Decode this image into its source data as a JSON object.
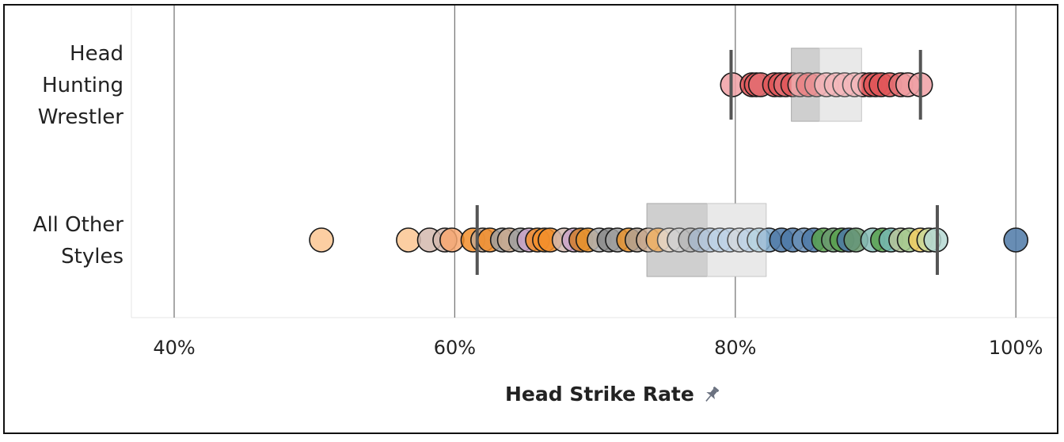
{
  "chart_data": {
    "type": "scatter",
    "subtype": "strip-plot-with-box",
    "xlabel": "Head Strike Rate",
    "ylabel": "",
    "xlim": [
      37,
      103
    ],
    "x_ticks": [
      "40%",
      "60%",
      "80%",
      "100%"
    ],
    "x_tick_values": [
      40,
      60,
      80,
      100
    ],
    "grid": true,
    "categories": [
      "Head\nHunting\nWrestler",
      "All Other\nStyles"
    ],
    "category_lines": [
      [
        "Head",
        "Hunting",
        "Wrestler"
      ],
      [
        "All Other",
        "Styles"
      ]
    ],
    "series": [
      {
        "category": "Head Hunting Wrestler",
        "box": {
          "min": 79.7,
          "q1": 84.0,
          "median": 86.0,
          "q3": 89.0,
          "max": 93.2
        },
        "points": [
          {
            "x": 79.8,
            "color": "#f0a0a4"
          },
          {
            "x": 81.2,
            "color": "#e15759"
          },
          {
            "x": 81.5,
            "color": "#e15759"
          },
          {
            "x": 81.8,
            "color": "#e37073"
          },
          {
            "x": 82.8,
            "color": "#e15759"
          },
          {
            "x": 83.2,
            "color": "#e15759"
          },
          {
            "x": 83.6,
            "color": "#e37073"
          },
          {
            "x": 84.1,
            "color": "#e15759"
          },
          {
            "x": 84.6,
            "color": "#e88a8d"
          },
          {
            "x": 85.2,
            "color": "#e15759"
          },
          {
            "x": 85.8,
            "color": "#e37073"
          },
          {
            "x": 86.5,
            "color": "#f0a0a4"
          },
          {
            "x": 87.2,
            "color": "#f0a0a4"
          },
          {
            "x": 87.8,
            "color": "#f0a0a4"
          },
          {
            "x": 88.5,
            "color": "#f0a0a4"
          },
          {
            "x": 89.1,
            "color": "#f0a0a4"
          },
          {
            "x": 89.6,
            "color": "#e15759"
          },
          {
            "x": 90.0,
            "color": "#e15759"
          },
          {
            "x": 90.4,
            "color": "#e15759"
          },
          {
            "x": 91.0,
            "color": "#e15759"
          },
          {
            "x": 91.8,
            "color": "#e37073"
          },
          {
            "x": 92.3,
            "color": "#f0a0a4"
          },
          {
            "x": 93.2,
            "color": "#f0a0a4"
          }
        ]
      },
      {
        "category": "All Other Styles",
        "box": {
          "min": 61.6,
          "q1": 73.7,
          "median": 78.0,
          "q3": 82.2,
          "max": 94.4
        },
        "points": [
          {
            "x": 50.5,
            "color": "#fcc592"
          },
          {
            "x": 56.7,
            "color": "#fcc592"
          },
          {
            "x": 58.2,
            "color": "#d4b8ae"
          },
          {
            "x": 59.3,
            "color": "#d4b8ae"
          },
          {
            "x": 59.8,
            "color": "#f7a770"
          },
          {
            "x": 61.3,
            "color": "#f28e2b"
          },
          {
            "x": 62.0,
            "color": "#c9a98e"
          },
          {
            "x": 62.5,
            "color": "#f28e2b"
          },
          {
            "x": 63.4,
            "color": "#a0a0a0"
          },
          {
            "x": 63.9,
            "color": "#c9a98e"
          },
          {
            "x": 64.7,
            "color": "#a0a0a0"
          },
          {
            "x": 65.3,
            "color": "#c9a3c8"
          },
          {
            "x": 65.9,
            "color": "#f28e2b"
          },
          {
            "x": 66.4,
            "color": "#f28e2b"
          },
          {
            "x": 66.8,
            "color": "#f28e2b"
          },
          {
            "x": 67.8,
            "color": "#d4b8ae"
          },
          {
            "x": 68.5,
            "color": "#c9a3c8"
          },
          {
            "x": 69.0,
            "color": "#d07c2b"
          },
          {
            "x": 69.5,
            "color": "#e8932e"
          },
          {
            "x": 70.3,
            "color": "#b0b0b0"
          },
          {
            "x": 71.0,
            "color": "#8a8a8a"
          },
          {
            "x": 71.6,
            "color": "#a0a0a0"
          },
          {
            "x": 72.4,
            "color": "#e8932e"
          },
          {
            "x": 73.0,
            "color": "#b0a090"
          },
          {
            "x": 73.8,
            "color": "#c9a98e"
          },
          {
            "x": 74.5,
            "color": "#e8932e"
          },
          {
            "x": 75.3,
            "color": "#d9c9b8"
          },
          {
            "x": 76.0,
            "color": "#c0c0c0"
          },
          {
            "x": 76.8,
            "color": "#a0a0a0"
          },
          {
            "x": 77.5,
            "color": "#8aa0b8"
          },
          {
            "x": 78.2,
            "color": "#9fb5cf"
          },
          {
            "x": 78.9,
            "color": "#a9c4de"
          },
          {
            "x": 79.6,
            "color": "#a9c4de"
          },
          {
            "x": 80.3,
            "color": "#c4cbd2"
          },
          {
            "x": 81.0,
            "color": "#a9c4de"
          },
          {
            "x": 81.7,
            "color": "#9fc6d6"
          },
          {
            "x": 82.4,
            "color": "#7fa8c9"
          },
          {
            "x": 83.3,
            "color": "#4e79a7"
          },
          {
            "x": 84.1,
            "color": "#4e79a7"
          },
          {
            "x": 84.9,
            "color": "#6a8fb6"
          },
          {
            "x": 85.6,
            "color": "#4e79a7"
          },
          {
            "x": 86.3,
            "color": "#59a14f"
          },
          {
            "x": 87.0,
            "color": "#6a9a70"
          },
          {
            "x": 87.6,
            "color": "#59a14f"
          },
          {
            "x": 88.1,
            "color": "#4e79a7"
          },
          {
            "x": 88.6,
            "color": "#6a9a70"
          },
          {
            "x": 89.8,
            "color": "#86bcb6"
          },
          {
            "x": 90.5,
            "color": "#59a14f"
          },
          {
            "x": 91.1,
            "color": "#76b7b2"
          },
          {
            "x": 91.8,
            "color": "#b6c49a"
          },
          {
            "x": 92.4,
            "color": "#a5c98e"
          },
          {
            "x": 93.2,
            "color": "#f1ce63"
          },
          {
            "x": 93.8,
            "color": "#c8d89a"
          },
          {
            "x": 94.3,
            "color": "#b5d8d2"
          },
          {
            "x": 100.0,
            "color": "#4e79a7"
          }
        ]
      }
    ],
    "colors": {
      "box_lower": "#bfbfbf",
      "box_upper": "#e2e2e2",
      "whisker": "#555555",
      "grid": "#7a7a7a",
      "pin_icon": "#6b7280"
    }
  },
  "icons": {
    "pin": "pin-icon"
  }
}
